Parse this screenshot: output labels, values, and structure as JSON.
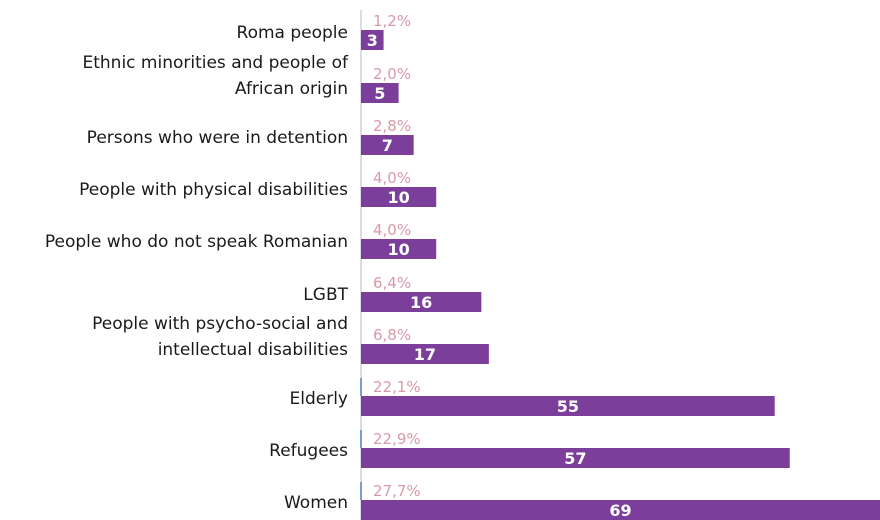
{
  "chart_data": {
    "type": "bar",
    "orientation": "horizontal",
    "categories": [
      [
        "Roma people"
      ],
      [
        "Ethnic minorities and people of",
        "African origin"
      ],
      [
        "Persons who were in detention"
      ],
      [
        "People with physical disabilities"
      ],
      [
        "People who do not speak Romanian"
      ],
      [
        "LGBT"
      ],
      [
        "People with psycho-social and",
        "intellectual disabilities"
      ],
      [
        "Elderly"
      ],
      [
        "Refugees"
      ],
      [
        "Women"
      ]
    ],
    "values": [
      3,
      5,
      7,
      10,
      10,
      16,
      17,
      55,
      57,
      69
    ],
    "value_labels": [
      "3",
      "5",
      "7",
      "10",
      "10",
      "16",
      "17",
      "55",
      "57",
      "69"
    ],
    "percent_labels": [
      "1,2%",
      "2,0%",
      "2,8%",
      "4,0%",
      "4,0%",
      "6,4%",
      "6,8%",
      "22,1%",
      "22,9%",
      "27,7%"
    ],
    "percent_values": [
      1.2,
      2.0,
      2.8,
      4.0,
      4.0,
      6.4,
      6.8,
      22.1,
      22.9,
      27.7
    ],
    "xlim": [
      0,
      69
    ],
    "grid": false,
    "legend": "none",
    "colors": {
      "bar": "#7b3f9b",
      "percent_text": "#d99aa8",
      "axis": "#b9b9c9",
      "axis_accent": "#4a7fb8",
      "category_text": "#1a1a1a",
      "value_text": "#ffffff"
    }
  }
}
